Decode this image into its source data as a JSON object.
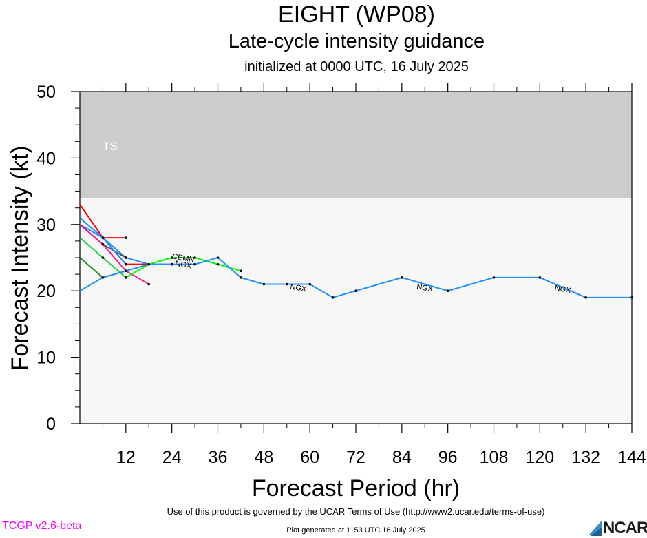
{
  "title": "EIGHT (WP08)",
  "subtitle": "Late-cycle intensity guidance",
  "init_line": "initialized at 0000 UTC, 16 July 2025",
  "footer": {
    "terms": "Use of this product is governed by the UCAR Terms of Use (http://www2.ucar.edu/terms-of-use)",
    "version": "TCGP v2.6-beta",
    "generated": "Plot generated at 1153 UTC   16 July 2025",
    "logo": "NCAR"
  },
  "chart_data": {
    "type": "line",
    "title": "EIGHT (WP08)",
    "xlabel": "Forecast Period (hr)",
    "ylabel": "Forecast Intensity (kt)",
    "xlim": [
      0,
      144
    ],
    "ylim": [
      0,
      50
    ],
    "xticks": [
      12,
      24,
      36,
      48,
      60,
      72,
      84,
      96,
      108,
      120,
      132,
      144
    ],
    "yticks": [
      0,
      10,
      20,
      30,
      40,
      50
    ],
    "bands": [
      {
        "label": "TS",
        "from": 34,
        "to": 50,
        "color": "#cccccc"
      },
      {
        "label": "",
        "from": 0,
        "to": 34,
        "color": "#f7f7f7"
      }
    ],
    "grid": false,
    "series": [
      {
        "name": "",
        "color": "#1e90ff",
        "x": [
          0,
          6,
          12,
          18,
          24
        ],
        "y": [
          30,
          28,
          25,
          24,
          24
        ]
      },
      {
        "name": "",
        "color": "#228b22",
        "x": [
          0,
          6,
          12
        ],
        "y": [
          25,
          22,
          23
        ]
      },
      {
        "name": "",
        "color": "#2ecc40",
        "x": [
          0,
          6,
          12
        ],
        "y": [
          28,
          25,
          22
        ]
      },
      {
        "name": "",
        "color": "#555555",
        "x": [
          0,
          6,
          12
        ],
        "y": [
          30,
          27,
          25
        ]
      },
      {
        "name": "",
        "color": "#ff1493",
        "x": [
          0,
          6,
          12,
          18
        ],
        "y": [
          30,
          27,
          23,
          21
        ]
      },
      {
        "name": "",
        "color": "#ff0000",
        "x": [
          0,
          6,
          12,
          18
        ],
        "y": [
          33,
          28,
          24,
          24
        ]
      },
      {
        "name": "",
        "color": "#ff0000",
        "x": [
          6,
          12
        ],
        "y": [
          28,
          28
        ]
      },
      {
        "name": "",
        "color": "#00ff00",
        "x": [
          12,
          18,
          24,
          30,
          36,
          42
        ],
        "y": [
          22,
          24,
          25,
          25,
          24,
          23
        ]
      },
      {
        "name": "",
        "color": "#1e90ff",
        "x": [
          0,
          6,
          12
        ],
        "y": [
          31,
          28,
          24
        ]
      },
      {
        "name": "",
        "color": "#1e90ff",
        "x": [
          0,
          6,
          12,
          18,
          24,
          30,
          36,
          42,
          48,
          54,
          60,
          66,
          72,
          84,
          96,
          108,
          120,
          132,
          144
        ],
        "y": [
          20,
          22,
          23,
          24,
          24,
          24,
          25,
          22,
          21,
          21,
          21,
          19,
          20,
          22,
          20,
          22,
          22,
          19,
          19
        ]
      }
    ],
    "labels": [
      {
        "text": "CEMN",
        "x": 27,
        "y": 25,
        "color": "#000000"
      },
      {
        "text": "NGX",
        "x": 27,
        "y": 24,
        "color": "#000000"
      },
      {
        "text": "NGX",
        "x": 57,
        "y": 20.5,
        "color": "#000000"
      },
      {
        "text": "NGX",
        "x": 90,
        "y": 20.5,
        "color": "#000000"
      },
      {
        "text": "NGX",
        "x": 126,
        "y": 20.3,
        "color": "#000000"
      }
    ]
  }
}
